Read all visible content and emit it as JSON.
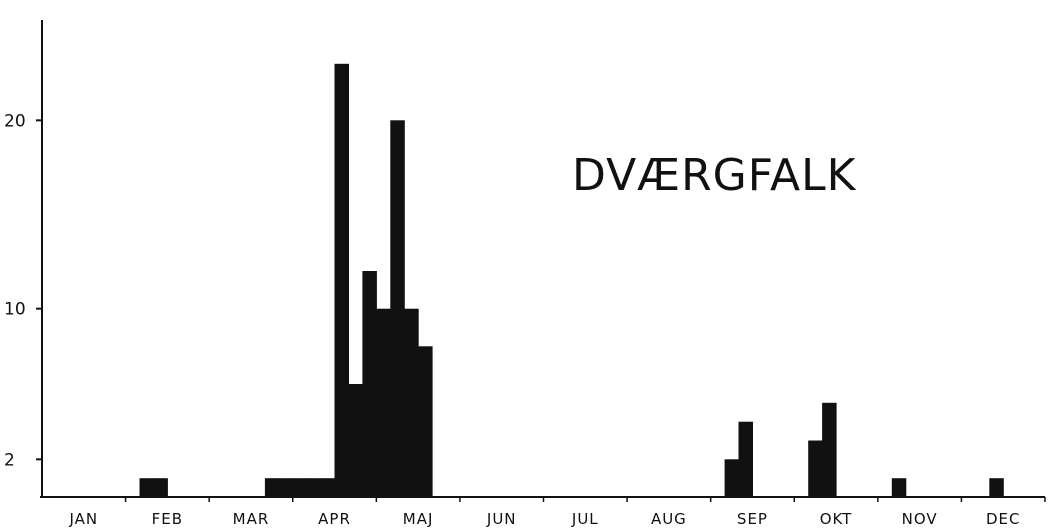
{
  "chart_data": {
    "type": "bar",
    "title": "DVÆRGFALK",
    "xlabel": "",
    "ylabel": "",
    "y_ticks": [
      2,
      10,
      20
    ],
    "ylim": [
      0,
      24
    ],
    "months": [
      "JAN",
      "FEB",
      "MAR",
      "APR",
      "MAJ",
      "JUN",
      "JUL",
      "AUG",
      "SEP",
      "OKT",
      "NOV",
      "DEC"
    ],
    "bins_per_month": 6,
    "grid": false,
    "legend": "none",
    "bars": [
      {
        "month": "FEB",
        "bin": 1,
        "value": 1
      },
      {
        "month": "FEB",
        "bin": 2,
        "value": 1
      },
      {
        "month": "MAR",
        "bin": 4,
        "value": 1
      },
      {
        "month": "MAR",
        "bin": 5,
        "value": 1
      },
      {
        "month": "APR",
        "bin": 0,
        "value": 1
      },
      {
        "month": "APR",
        "bin": 1,
        "value": 1
      },
      {
        "month": "APR",
        "bin": 2,
        "value": 1
      },
      {
        "month": "APR",
        "bin": 3,
        "value": 23
      },
      {
        "month": "APR",
        "bin": 4,
        "value": 6
      },
      {
        "month": "APR",
        "bin": 5,
        "value": 12
      },
      {
        "month": "MAJ",
        "bin": 0,
        "value": 10
      },
      {
        "month": "MAJ",
        "bin": 1,
        "value": 20
      },
      {
        "month": "MAJ",
        "bin": 2,
        "value": 10
      },
      {
        "month": "MAJ",
        "bin": 3,
        "value": 8
      },
      {
        "month": "SEP",
        "bin": 1,
        "value": 2
      },
      {
        "month": "SEP",
        "bin": 2,
        "value": 4
      },
      {
        "month": "OKT",
        "bin": 1,
        "value": 3
      },
      {
        "month": "OKT",
        "bin": 2,
        "value": 5
      },
      {
        "month": "NOV",
        "bin": 1,
        "value": 1
      },
      {
        "month": "DEC",
        "bin": 2,
        "value": 1
      }
    ],
    "bar_color": "#111111"
  }
}
